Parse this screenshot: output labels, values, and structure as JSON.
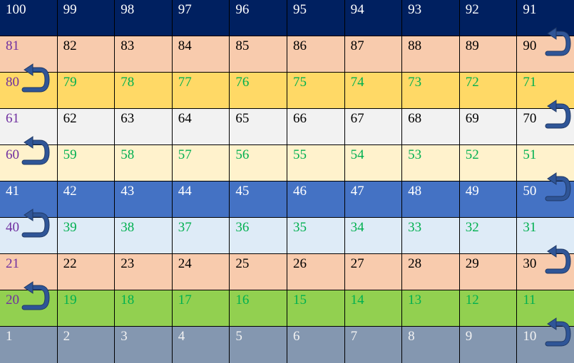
{
  "rows": [
    {
      "bg": "#002060",
      "colors": [
        "#ffffff",
        "#ffffff",
        "#ffffff",
        "#ffffff",
        "#ffffff",
        "#ffffff",
        "#ffffff",
        "#ffffff",
        "#ffffff",
        "#ffffff"
      ],
      "cells": [
        "100",
        "99",
        "98",
        "97",
        "96",
        "95",
        "94",
        "93",
        "92",
        "91"
      ]
    },
    {
      "bg": "#f8cbad",
      "colors": [
        "#7030a0",
        "#000000",
        "#000000",
        "#000000",
        "#000000",
        "#000000",
        "#000000",
        "#000000",
        "#000000",
        "#000000"
      ],
      "cells": [
        "81",
        "82",
        "83",
        "84",
        "85",
        "86",
        "87",
        "88",
        "89",
        "90"
      ]
    },
    {
      "bg": "#ffd966",
      "colors": [
        "#7030a0",
        "#00b050",
        "#00b050",
        "#00b050",
        "#00b050",
        "#00b050",
        "#00b050",
        "#00b050",
        "#00b050",
        "#00b050"
      ],
      "cells": [
        "80",
        "79",
        "78",
        "77",
        "76",
        "75",
        "74",
        "73",
        "72",
        "71"
      ]
    },
    {
      "bg": "#f2f2f2",
      "colors": [
        "#7030a0",
        "#000000",
        "#000000",
        "#000000",
        "#000000",
        "#000000",
        "#000000",
        "#000000",
        "#000000",
        "#000000"
      ],
      "cells": [
        "61",
        "62",
        "63",
        "64",
        "65",
        "66",
        "67",
        "68",
        "69",
        "70"
      ]
    },
    {
      "bg": "#fff2cc",
      "colors": [
        "#7030a0",
        "#00b050",
        "#00b050",
        "#00b050",
        "#00b050",
        "#00b050",
        "#00b050",
        "#00b050",
        "#00b050",
        "#00b050"
      ],
      "cells": [
        "60",
        "59",
        "58",
        "57",
        "56",
        "55",
        "54",
        "53",
        "52",
        "51"
      ]
    },
    {
      "bg": "#4472c4",
      "colors": [
        "#ffffff",
        "#ffffff",
        "#ffffff",
        "#ffffff",
        "#ffffff",
        "#ffffff",
        "#ffffff",
        "#ffffff",
        "#ffffff",
        "#ffffff"
      ],
      "cells": [
        "41",
        "42",
        "43",
        "44",
        "45",
        "46",
        "47",
        "48",
        "49",
        "50"
      ]
    },
    {
      "bg": "#deebf7",
      "colors": [
        "#7030a0",
        "#00b050",
        "#00b050",
        "#00b050",
        "#00b050",
        "#00b050",
        "#00b050",
        "#00b050",
        "#00b050",
        "#00b050"
      ],
      "cells": [
        "40",
        "39",
        "38",
        "37",
        "36",
        "35",
        "34",
        "33",
        "32",
        "31"
      ]
    },
    {
      "bg": "#f8cbad",
      "colors": [
        "#7030a0",
        "#000000",
        "#000000",
        "#000000",
        "#000000",
        "#000000",
        "#000000",
        "#000000",
        "#000000",
        "#000000"
      ],
      "cells": [
        "21",
        "22",
        "23",
        "24",
        "25",
        "26",
        "27",
        "28",
        "29",
        "30"
      ]
    },
    {
      "bg": "#92d050",
      "colors": [
        "#7030a0",
        "#00b050",
        "#00b050",
        "#00b050",
        "#00b050",
        "#00b050",
        "#00b050",
        "#00b050",
        "#00b050",
        "#00b050"
      ],
      "cells": [
        "20",
        "19",
        "18",
        "17",
        "16",
        "15",
        "14",
        "13",
        "12",
        "11"
      ]
    },
    {
      "bg": "#8497b0",
      "colors": [
        "#f2f2f2",
        "#f2f2f2",
        "#f2f2f2",
        "#f2f2f2",
        "#f2f2f2",
        "#f2f2f2",
        "#f2f2f2",
        "#f2f2f2",
        "#f2f2f2",
        "#f2f2f2"
      ],
      "cells": [
        "1",
        "2",
        "3",
        "4",
        "5",
        "6",
        "7",
        "8",
        "9",
        "10"
      ]
    }
  ],
  "turn_arrows": [
    {
      "from": "90",
      "to": "91",
      "side": "right"
    },
    {
      "from": "80",
      "to": "81",
      "side": "left"
    },
    {
      "from": "70",
      "to": "71",
      "side": "right"
    },
    {
      "from": "60",
      "to": "61",
      "side": "left"
    },
    {
      "from": "50",
      "to": "51",
      "side": "right"
    },
    {
      "from": "40",
      "to": "41",
      "side": "left"
    },
    {
      "from": "30",
      "to": "31",
      "side": "right"
    },
    {
      "from": "20",
      "to": "21",
      "side": "left"
    },
    {
      "from": "10",
      "to": "11",
      "side": "right"
    }
  ],
  "arrow_color": "#2f5597",
  "arrow_outline": "#1f3864",
  "grid_line_color": "#000000",
  "arrow_icon": "u-turn-arrow-icon"
}
